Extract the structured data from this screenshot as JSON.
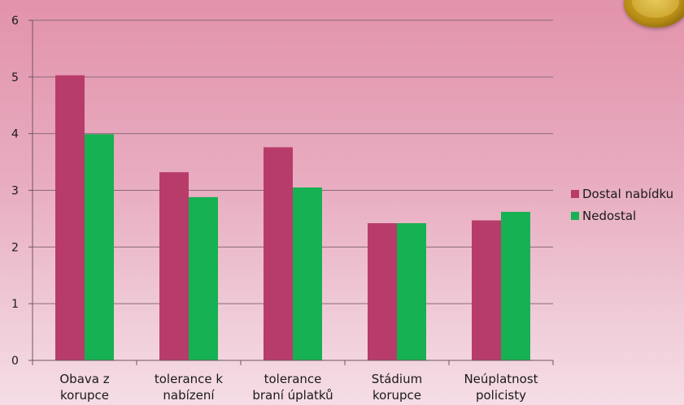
{
  "chart_data": {
    "type": "bar",
    "categories": [
      [
        "Obava z",
        "korupce"
      ],
      [
        "tolerance k",
        "nabízení"
      ],
      [
        "tolerance",
        "braní úplatků"
      ],
      [
        "Stádium",
        "korupce"
      ],
      [
        "Neúplatnost",
        "policisty"
      ]
    ],
    "series": [
      {
        "name": "Dostal nabídku",
        "color": "#b83c6a",
        "values": [
          5.03,
          3.32,
          3.76,
          2.42,
          2.47
        ]
      },
      {
        "name": "Nedostal",
        "color": "#16b152",
        "values": [
          3.99,
          2.88,
          3.05,
          2.42,
          2.62
        ]
      }
    ],
    "ylim": [
      0,
      6
    ],
    "yticks": [
      0,
      1,
      2,
      3,
      4,
      5,
      6
    ],
    "grid": true,
    "legend_position": "right"
  }
}
